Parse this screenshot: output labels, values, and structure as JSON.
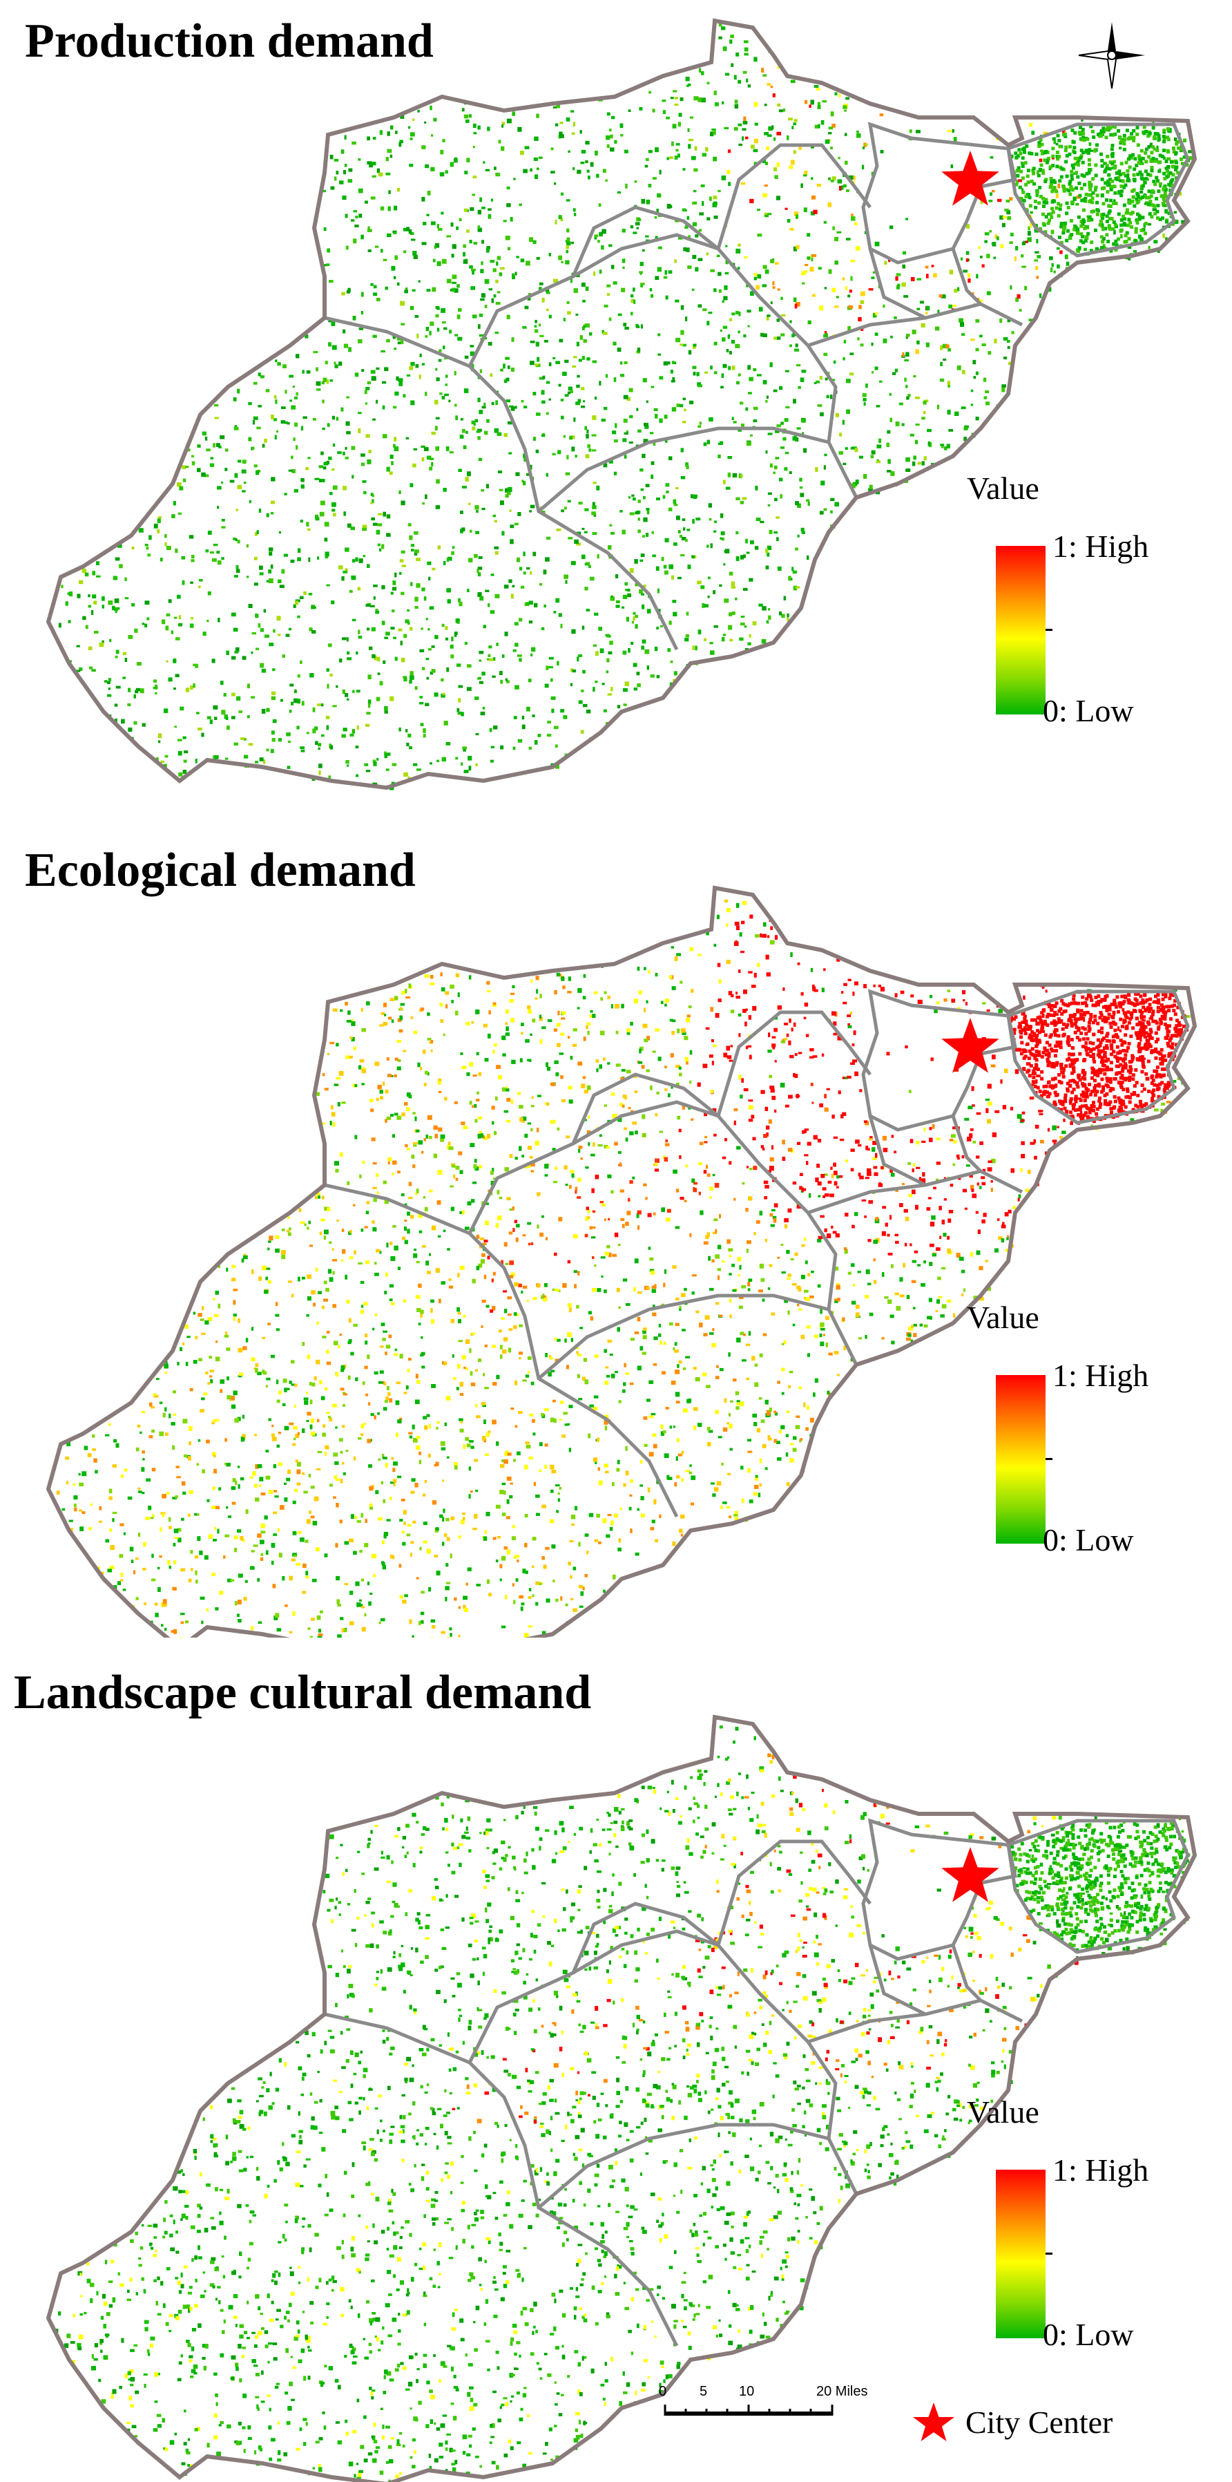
{
  "panels": [
    {
      "id": "production",
      "title": "Production demand",
      "pattern": "production"
    },
    {
      "id": "ecological",
      "title": "Ecological demand",
      "pattern": "ecological"
    },
    {
      "id": "landscape",
      "title": "Landscape cultural demand",
      "pattern": "landscape"
    }
  ],
  "legend": {
    "title": "Value",
    "high_label": "1:  High",
    "low_label": "0:  Low",
    "max_value": 1,
    "min_value": 0,
    "colors": [
      "#ff0000",
      "#ff8c00",
      "#ffff00",
      "#7fd800",
      "#00b400"
    ]
  },
  "city_center": {
    "label": "City Center",
    "color": "#ff0000"
  },
  "scale_bar": {
    "ticks": [
      "0",
      "5",
      "10",
      "20 Miles"
    ],
    "tick_values": [
      0,
      5,
      10,
      20
    ]
  },
  "north_arrow": {
    "icon": "north-arrow-icon"
  },
  "boundary_color": "#8a8a8a",
  "outer_boundary_color": "#8a7b7b"
}
